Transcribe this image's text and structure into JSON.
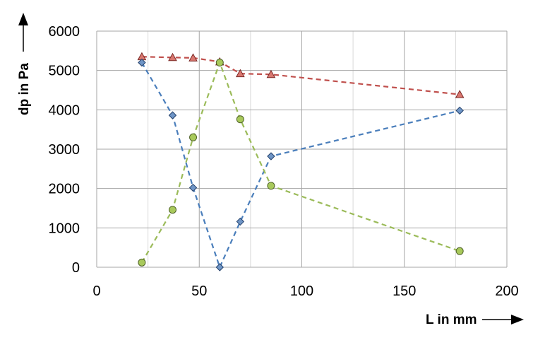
{
  "chart_data": {
    "type": "scatter",
    "title": "",
    "xlabel": "L in mm",
    "ylabel": "dp in Pa",
    "xlim": [
      0,
      200
    ],
    "ylim": [
      0,
      6000
    ],
    "x_ticks": [
      0,
      50,
      100,
      150,
      200
    ],
    "x_tick_labels": [
      "0",
      "50",
      "100",
      "150",
      "200"
    ],
    "y_ticks": [
      0,
      1000,
      2000,
      3000,
      4000,
      5000,
      6000
    ],
    "y_tick_labels": [
      "0",
      "1000",
      "2000",
      "3000",
      "4000",
      "5000",
      "6000"
    ],
    "grid": true,
    "legend": "none",
    "series": [
      {
        "marker": "triangle",
        "line": "dashed",
        "color": "#c0504d",
        "fill": "#d9776f",
        "x": [
          22,
          37,
          47,
          60,
          70,
          85,
          177
        ],
        "y": [
          5350,
          5330,
          5320,
          5220,
          4920,
          4900,
          4390
        ]
      },
      {
        "marker": "diamond",
        "line": "dashed",
        "color": "#4a7ebb",
        "fill": "#6f95c6",
        "x": [
          22,
          37,
          47,
          60,
          70,
          85,
          177
        ],
        "y": [
          5200,
          3860,
          2020,
          0,
          1160,
          2820,
          3980
        ]
      },
      {
        "marker": "circle",
        "line": "dashed",
        "color": "#9bbb59",
        "fill": "#a8c95b",
        "x": [
          22,
          37,
          47,
          60,
          70,
          85,
          177
        ],
        "y": [
          120,
          1460,
          3300,
          5200,
          3760,
          2070,
          410
        ]
      }
    ]
  }
}
